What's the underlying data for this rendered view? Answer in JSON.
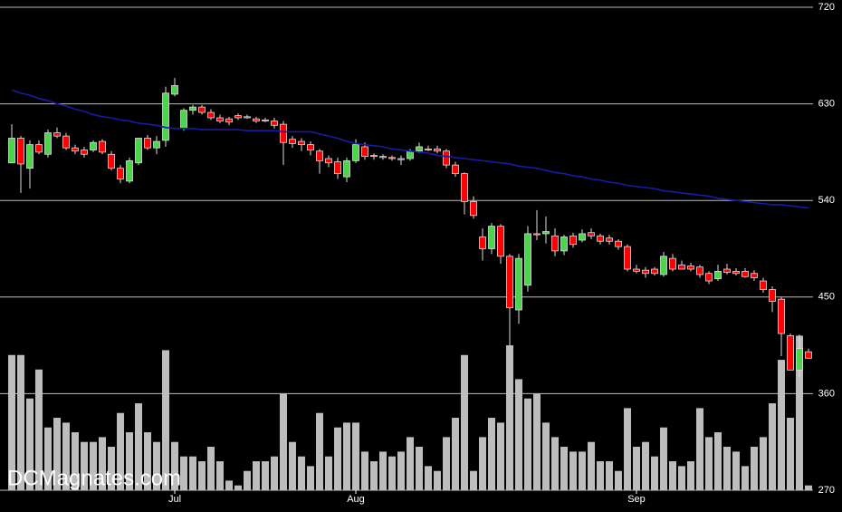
{
  "chart_data": {
    "type": "candlestick",
    "watermark": "DCMagnates.com",
    "categories": [
      null,
      null,
      null,
      null,
      null,
      null,
      null,
      null,
      null,
      null,
      null,
      null,
      null,
      null,
      null,
      null,
      null,
      null,
      "Jul",
      null,
      null,
      null,
      null,
      null,
      null,
      null,
      null,
      null,
      null,
      null,
      null,
      null,
      null,
      null,
      null,
      null,
      null,
      null,
      "Aug",
      null,
      null,
      null,
      null,
      null,
      null,
      null,
      null,
      null,
      null,
      null,
      null,
      null,
      null,
      null,
      null,
      null,
      null,
      null,
      null,
      null,
      null,
      null,
      null,
      null,
      null,
      null,
      null,
      null,
      null,
      "Sep",
      null,
      null,
      null,
      null,
      null,
      null,
      null,
      null,
      null,
      null,
      null,
      null,
      null,
      null,
      null,
      null,
      null,
      null,
      null
    ],
    "open": [
      575,
      598,
      570,
      592,
      583,
      603,
      600,
      589,
      587,
      587,
      595,
      583,
      570,
      558,
      575,
      598,
      589,
      596,
      639,
      607,
      624,
      627,
      622,
      617,
      616,
      619,
      618,
      616,
      615,
      614,
      611,
      597,
      595,
      592,
      586,
      579,
      576,
      562,
      577,
      590,
      582,
      581,
      580,
      579,
      579,
      586,
      588,
      588,
      586,
      573,
      565,
      539,
      506,
      495,
      516,
      488,
      438,
      461,
      509,
      509,
      507,
      493,
      507,
      503,
      510,
      507,
      505,
      502,
      497,
      476,
      475,
      476,
      471,
      486,
      480,
      479,
      478,
      472,
      467,
      476,
      474,
      474,
      472,
      465,
      457,
      448,
      414,
      382,
      399
    ],
    "high": [
      611,
      600,
      596,
      596,
      606,
      608,
      603,
      592,
      590,
      596,
      597,
      586,
      573,
      580,
      598,
      601,
      600,
      646,
      654,
      626,
      629,
      629,
      625,
      620,
      618,
      621,
      620,
      618,
      617,
      617,
      614,
      600,
      598,
      595,
      588,
      582,
      580,
      580,
      597,
      594,
      584,
      583,
      582,
      582,
      588,
      594,
      591,
      591,
      588,
      576,
      566,
      544,
      514,
      519,
      518,
      490,
      490,
      516,
      531,
      525,
      514,
      508,
      510,
      513,
      514,
      509,
      508,
      504,
      499,
      480,
      478,
      478,
      492,
      490,
      484,
      482,
      480,
      474,
      480,
      481,
      477,
      477,
      475,
      468,
      460,
      450,
      416,
      415,
      402
    ],
    "low": [
      575,
      547,
      551,
      583,
      580,
      598,
      587,
      583,
      580,
      585,
      583,
      568,
      556,
      556,
      573,
      587,
      583,
      590,
      637,
      605,
      620,
      620,
      615,
      612,
      610,
      615,
      616,
      612,
      613,
      607,
      573,
      589,
      586,
      582,
      565,
      571,
      560,
      557,
      575,
      578,
      578,
      578,
      577,
      573,
      577,
      584,
      586,
      584,
      570,
      562,
      527,
      523,
      484,
      490,
      481,
      404,
      425,
      455,
      503,
      500,
      488,
      489,
      496,
      501,
      504,
      499,
      499,
      494,
      474,
      472,
      468,
      470,
      469,
      474,
      476,
      474,
      468,
      462,
      465,
      471,
      470,
      468,
      465,
      454,
      436,
      395,
      382,
      375,
      393
    ],
    "close": [
      598,
      574,
      592,
      585,
      603,
      600,
      589,
      586,
      583,
      594,
      585,
      570,
      560,
      577,
      598,
      589,
      595,
      640,
      647,
      624,
      627,
      622,
      617,
      614,
      613,
      617,
      617,
      614,
      614,
      610,
      594,
      593,
      592,
      587,
      577,
      575,
      565,
      577,
      592,
      581,
      581,
      580,
      579,
      578,
      586,
      590,
      587,
      586,
      573,
      565,
      539,
      526,
      495,
      516,
      488,
      440,
      486,
      509,
      508,
      511,
      493,
      506,
      499,
      509,
      507,
      502,
      502,
      497,
      476,
      474,
      472,
      472,
      488,
      476,
      476,
      476,
      471,
      465,
      474,
      473,
      472,
      469,
      468,
      457,
      446,
      416,
      382,
      402,
      393
    ],
    "up_color": "#4cd44c",
    "down_color": "#ff0000",
    "volume": {
      "color": "#bdbdbd",
      "vlim": [
        0,
        100
      ],
      "values": [
        28,
        28,
        19,
        25,
        13,
        15,
        14,
        12,
        10,
        10,
        11,
        9,
        16,
        12,
        18,
        12,
        10,
        29,
        10,
        7,
        7,
        6,
        9,
        6,
        2,
        1,
        4,
        6,
        6,
        7,
        20,
        10,
        7,
        5,
        16,
        7,
        13,
        14,
        14,
        8,
        6,
        8,
        7,
        8,
        11,
        9,
        5,
        4,
        11,
        15,
        28,
        4,
        11,
        15,
        14,
        30,
        23,
        19,
        20,
        14,
        11,
        9,
        8,
        8,
        10,
        6,
        6,
        4,
        17,
        9,
        10,
        7,
        13,
        6,
        5,
        6,
        17,
        11,
        12,
        9,
        8,
        5,
        9,
        11,
        18,
        27,
        15,
        32,
        1
      ]
    },
    "moving_average": {
      "color": "#1a1aa6",
      "values": [
        643,
        640,
        638,
        635,
        633,
        630,
        628,
        625,
        623,
        620,
        618,
        617,
        615,
        614,
        612,
        611,
        610,
        608,
        607,
        607,
        607,
        606,
        606,
        606,
        606,
        606,
        605,
        605,
        605,
        605,
        604,
        604,
        604,
        604,
        602,
        600,
        598,
        595,
        593,
        592,
        591,
        590,
        588,
        587,
        586,
        585,
        584,
        582,
        581,
        580,
        579,
        578,
        577,
        576,
        575,
        574,
        572,
        571,
        570,
        568,
        566,
        565,
        563,
        562,
        560,
        559,
        557,
        556,
        554,
        553,
        552,
        551,
        549,
        548,
        547,
        546,
        545,
        544,
        542,
        541,
        540,
        539,
        538,
        537,
        536,
        536,
        535,
        534,
        533
      ]
    },
    "ylim": [
      270,
      720
    ],
    "yticks": [
      270,
      360,
      450,
      540,
      630,
      720
    ],
    "grid": true
  }
}
